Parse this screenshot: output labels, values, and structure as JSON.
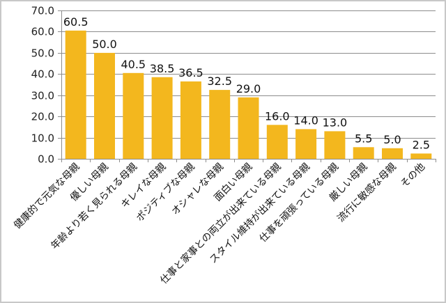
{
  "chart_data": {
    "type": "bar",
    "title": "",
    "xlabel": "",
    "ylabel": "",
    "ylim": [
      0,
      70
    ],
    "yticks": [
      "0.0",
      "10.0",
      "20.0",
      "30.0",
      "40.0",
      "50.0",
      "60.0",
      "70.0"
    ],
    "grid": true,
    "legend": null,
    "bar_color": "#F3B71E",
    "categories": [
      "健康的で元気な母親",
      "優しい母親",
      "年齢より若く見られる母親",
      "キレイな母親",
      "ポジティブな母親",
      "オシャレな母親",
      "面白い母親",
      "仕事と家事との両立が出来ている母親",
      "スタイル維持が出来ている母親",
      "仕事を頑張っている母親",
      "厳しい母親",
      "流行に敏感な母親",
      "その他"
    ],
    "values": [
      60.5,
      50.0,
      40.5,
      38.5,
      36.5,
      32.5,
      29.0,
      16.0,
      14.0,
      13.0,
      5.5,
      5.0,
      2.5
    ],
    "value_labels": [
      "60.5",
      "50.0",
      "40.5",
      "38.5",
      "36.5",
      "32.5",
      "29.0",
      "16.0",
      "14.0",
      "13.0",
      "5.5",
      "5.0",
      "2.5"
    ]
  }
}
